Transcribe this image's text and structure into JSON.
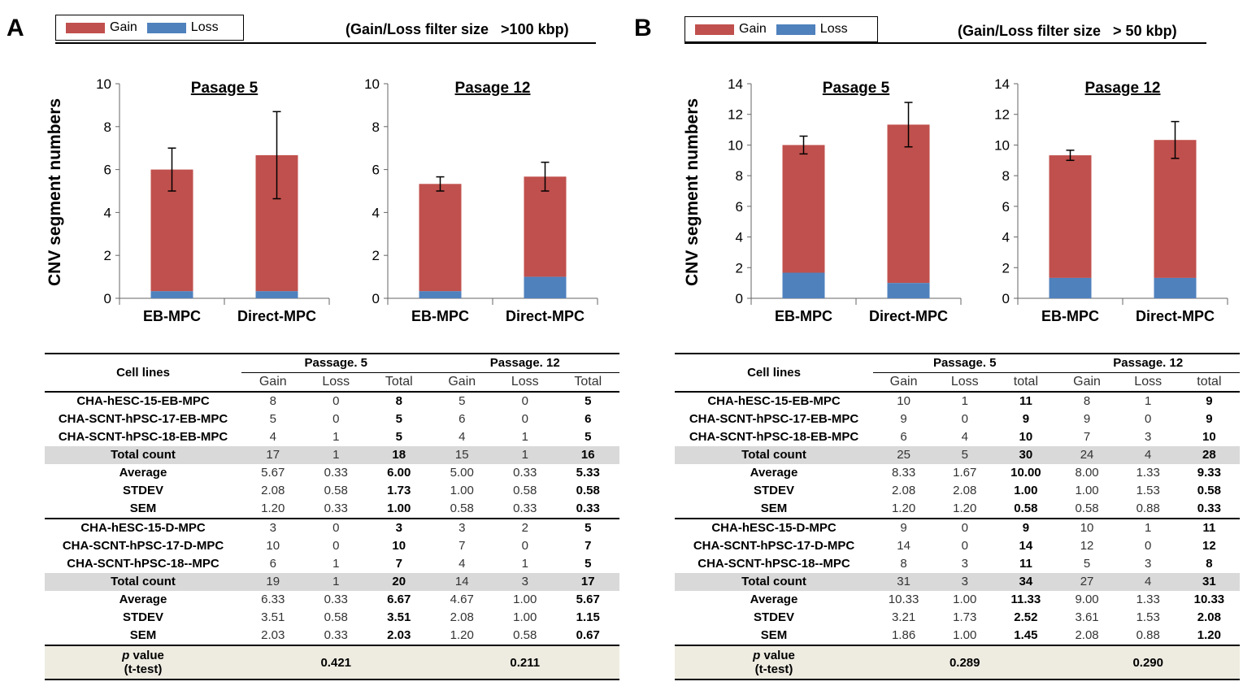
{
  "colors": {
    "gain": "#c0504d",
    "loss": "#4f81bd"
  },
  "legend": {
    "gain": "Gain",
    "loss": "Loss"
  },
  "y_axis_title": "CNV segment numbers",
  "panels": [
    {
      "letter": "A",
      "filter_label": "(Gain/Loss filter size   >100 kbp)",
      "charts": [
        {
          "title": "Pasage 5",
          "ymax": 10,
          "ticks": [
            0,
            2,
            4,
            6,
            8,
            10
          ],
          "categories": [
            "EB-MPC",
            "Direct-MPC"
          ],
          "loss": [
            0.33,
            0.33
          ],
          "total": [
            6.0,
            6.67
          ],
          "sem": [
            1.0,
            2.03
          ]
        },
        {
          "title": "Pasage 12",
          "ymax": 10,
          "ticks": [
            0,
            2,
            4,
            6,
            8,
            10
          ],
          "categories": [
            "EB-MPC",
            "Direct-MPC"
          ],
          "loss": [
            0.33,
            1.0
          ],
          "total": [
            5.33,
            5.67
          ],
          "sem": [
            0.33,
            0.67
          ]
        }
      ],
      "table": {
        "head": {
          "cell_lines": "Cell lines",
          "p5": "Passage. 5",
          "p12": "Passage. 12",
          "cols": [
            "Gain",
            "Loss",
            "Total",
            "Gain",
            "Loss",
            "Total"
          ]
        },
        "group1": [
          {
            "name": "CHA-hESC-15-EB-MPC",
            "v": [
              "8",
              "0",
              "8",
              "5",
              "0",
              "5"
            ]
          },
          {
            "name": "CHA-SCNT-hPSC-17-EB-MPC",
            "v": [
              "5",
              "0",
              "5",
              "6",
              "0",
              "6"
            ]
          },
          {
            "name": "CHA-SCNT-hPSC-18-EB-MPC",
            "v": [
              "4",
              "1",
              "5",
              "4",
              "1",
              "5"
            ]
          },
          {
            "name": "Total count",
            "v": [
              "17",
              "1",
              "18",
              "15",
              "1",
              "16"
            ],
            "gray": true
          },
          {
            "name": "Average",
            "v": [
              "5.67",
              "0.33",
              "6.00",
              "5.00",
              "0.33",
              "5.33"
            ]
          },
          {
            "name": "STDEV",
            "v": [
              "2.08",
              "0.58",
              "1.73",
              "1.00",
              "0.58",
              "0.58"
            ]
          },
          {
            "name": "SEM",
            "v": [
              "1.20",
              "0.33",
              "1.00",
              "0.58",
              "0.33",
              "0.33"
            ]
          }
        ],
        "group2": [
          {
            "name": "CHA-hESC-15-D-MPC",
            "v": [
              "3",
              "0",
              "3",
              "3",
              "2",
              "5"
            ]
          },
          {
            "name": "CHA-SCNT-hPSC-17-D-MPC",
            "v": [
              "10",
              "0",
              "10",
              "7",
              "0",
              "7"
            ]
          },
          {
            "name": "CHA-SCNT-hPSC-18--MPC",
            "v": [
              "6",
              "1",
              "7",
              "4",
              "1",
              "5"
            ]
          },
          {
            "name": "Total count",
            "v": [
              "19",
              "1",
              "20",
              "14",
              "3",
              "17"
            ],
            "gray": true
          },
          {
            "name": "Average",
            "v": [
              "6.33",
              "0.33",
              "6.67",
              "4.67",
              "1.00",
              "5.67"
            ]
          },
          {
            "name": "STDEV",
            "v": [
              "3.51",
              "0.58",
              "3.51",
              "2.08",
              "1.00",
              "1.15"
            ]
          },
          {
            "name": "SEM",
            "v": [
              "2.03",
              "0.33",
              "2.03",
              "1.20",
              "0.58",
              "0.67"
            ]
          }
        ],
        "pvalue": {
          "label1": "p",
          "label2": " value",
          "label3": "(t-test)",
          "p5": "0.421",
          "p12": "0.211"
        }
      }
    },
    {
      "letter": "B",
      "filter_label": "(Gain/Loss filter size   > 50 kbp)",
      "charts": [
        {
          "title": "Pasage 5",
          "ymax": 14,
          "ticks": [
            0,
            2,
            4,
            6,
            8,
            10,
            12,
            14
          ],
          "categories": [
            "EB-MPC",
            "Direct-MPC"
          ],
          "loss": [
            1.67,
            1.0
          ],
          "total": [
            10.0,
            11.33
          ],
          "sem": [
            0.58,
            1.45
          ]
        },
        {
          "title": "Pasage 12",
          "ymax": 14,
          "ticks": [
            0,
            2,
            4,
            6,
            8,
            10,
            12,
            14
          ],
          "categories": [
            "EB-MPC",
            "Direct-MPC"
          ],
          "loss": [
            1.33,
            1.33
          ],
          "total": [
            9.33,
            10.33
          ],
          "sem": [
            0.33,
            1.2
          ]
        }
      ],
      "table": {
        "head": {
          "cell_lines": "Cell lines",
          "p5": "Passage. 5",
          "p12": "Passage. 12",
          "cols": [
            "Gain",
            "Loss",
            "total",
            "Gain",
            "Loss",
            "total"
          ]
        },
        "group1": [
          {
            "name": "CHA-hESC-15-EB-MPC",
            "v": [
              "10",
              "1",
              "11",
              "8",
              "1",
              "9"
            ]
          },
          {
            "name": "CHA-SCNT-hPSC-17-EB-MPC",
            "v": [
              "9",
              "0",
              "9",
              "9",
              "0",
              "9"
            ]
          },
          {
            "name": "CHA-SCNT-hPSC-18-EB-MPC",
            "v": [
              "6",
              "4",
              "10",
              "7",
              "3",
              "10"
            ]
          },
          {
            "name": "Total count",
            "v": [
              "25",
              "5",
              "30",
              "24",
              "4",
              "28"
            ],
            "gray": true
          },
          {
            "name": "Average",
            "v": [
              "8.33",
              "1.67",
              "10.00",
              "8.00",
              "1.33",
              "9.33"
            ]
          },
          {
            "name": "STDEV",
            "v": [
              "2.08",
              "2.08",
              "1.00",
              "1.00",
              "1.53",
              "0.58"
            ]
          },
          {
            "name": "SEM",
            "v": [
              "1.20",
              "1.20",
              "0.58",
              "0.58",
              "0.88",
              "0.33"
            ]
          }
        ],
        "group2": [
          {
            "name": "CHA-hESC-15-D-MPC",
            "v": [
              "9",
              "0",
              "9",
              "10",
              "1",
              "11"
            ]
          },
          {
            "name": "CHA-SCNT-hPSC-17-D-MPC",
            "v": [
              "14",
              "0",
              "14",
              "12",
              "0",
              "12"
            ]
          },
          {
            "name": "CHA-SCNT-hPSC-18--MPC",
            "v": [
              "8",
              "3",
              "11",
              "5",
              "3",
              "8"
            ]
          },
          {
            "name": "Total count",
            "v": [
              "31",
              "3",
              "34",
              "27",
              "4",
              "31"
            ],
            "gray": true
          },
          {
            "name": "Average",
            "v": [
              "10.33",
              "1.00",
              "11.33",
              "9.00",
              "1.33",
              "10.33"
            ]
          },
          {
            "name": "STDEV",
            "v": [
              "3.21",
              "1.73",
              "2.52",
              "3.61",
              "1.53",
              "2.08"
            ]
          },
          {
            "name": "SEM",
            "v": [
              "1.86",
              "1.00",
              "1.45",
              "2.08",
              "0.88",
              "1.20"
            ]
          }
        ],
        "pvalue": {
          "label1": "p",
          "label2": " value",
          "label3": "(t-test)",
          "p5": "0.289",
          "p12": "0.290"
        }
      }
    }
  ],
  "chart_data": [
    {
      "type": "bar",
      "panel": "A",
      "title": "Pasage 5",
      "ylabel": "CNV segment numbers",
      "categories": [
        "EB-MPC",
        "Direct-MPC"
      ],
      "series": [
        {
          "name": "Loss",
          "values": [
            0.33,
            0.33
          ]
        },
        {
          "name": "Gain",
          "values": [
            5.67,
            6.33
          ]
        }
      ],
      "error_sem": [
        1.0,
        2.03
      ],
      "ylim": [
        0,
        10
      ]
    },
    {
      "type": "bar",
      "panel": "A",
      "title": "Pasage 12",
      "categories": [
        "EB-MPC",
        "Direct-MPC"
      ],
      "series": [
        {
          "name": "Loss",
          "values": [
            0.33,
            1.0
          ]
        },
        {
          "name": "Gain",
          "values": [
            5.0,
            4.67
          ]
        }
      ],
      "error_sem": [
        0.33,
        0.67
      ],
      "ylim": [
        0,
        10
      ]
    },
    {
      "type": "bar",
      "panel": "B",
      "title": "Pasage 5",
      "ylabel": "CNV segment numbers",
      "categories": [
        "EB-MPC",
        "Direct-MPC"
      ],
      "series": [
        {
          "name": "Loss",
          "values": [
            1.67,
            1.0
          ]
        },
        {
          "name": "Gain",
          "values": [
            8.33,
            10.33
          ]
        }
      ],
      "error_sem": [
        0.58,
        1.45
      ],
      "ylim": [
        0,
        14
      ]
    },
    {
      "type": "bar",
      "panel": "B",
      "title": "Pasage 12",
      "categories": [
        "EB-MPC",
        "Direct-MPC"
      ],
      "series": [
        {
          "name": "Loss",
          "values": [
            1.33,
            1.33
          ]
        },
        {
          "name": "Gain",
          "values": [
            8.0,
            9.0
          ]
        }
      ],
      "error_sem": [
        0.33,
        1.2
      ],
      "ylim": [
        0,
        14
      ]
    }
  ]
}
